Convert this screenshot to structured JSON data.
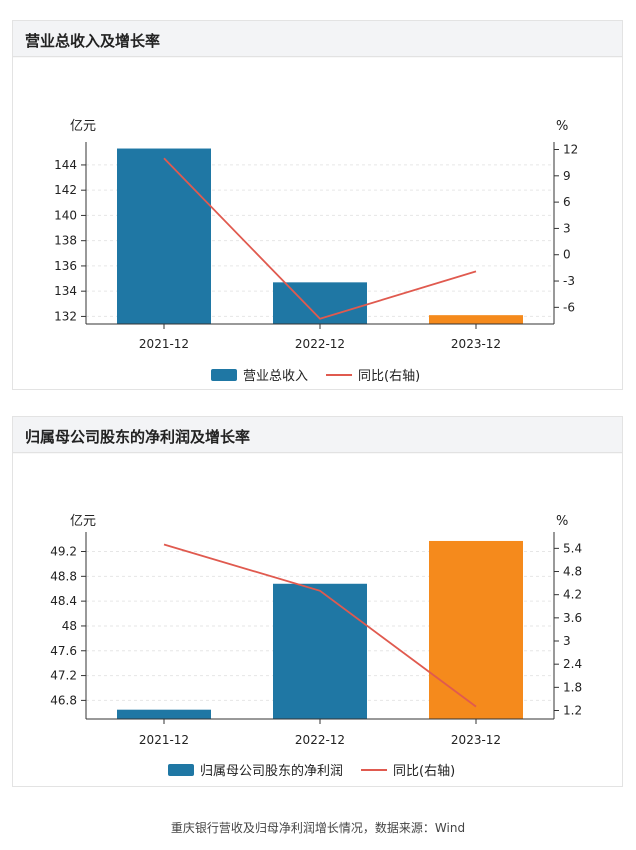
{
  "caption": "重庆银行营收及归母净利润增长情况，数据来源：Wind",
  "colors": {
    "bar_main": "#1f77a4",
    "bar_highlight": "#f58a1c",
    "line": "#e05a4f",
    "grid": "#e6e6e6"
  },
  "chart_data": [
    {
      "type": "bar",
      "title": "营业总收入及增长率",
      "categories": [
        "2021-12",
        "2022-12",
        "2023-12"
      ],
      "series": [
        {
          "name": "营业总收入",
          "type": "bar",
          "axis": "left",
          "values": [
            145.3,
            134.7,
            132.1
          ]
        },
        {
          "name": "同比(右轴)",
          "type": "line",
          "axis": "right",
          "values": [
            11.0,
            -7.3,
            -1.9
          ]
        }
      ],
      "ylabel": "亿元",
      "ylabel_right": "%",
      "ylim": [
        131.4,
        145.5
      ],
      "ylim_right": [
        -7.9,
        12.4
      ],
      "yticks": [
        "132",
        "134",
        "136",
        "138",
        "140",
        "142",
        "144"
      ],
      "yticks_right": [
        "-6",
        "-3",
        "0",
        "3",
        "6",
        "9",
        "12"
      ],
      "highlight_index": 2,
      "grid": true,
      "legend": "bottom"
    },
    {
      "type": "bar",
      "title": "归属母公司股东的净利润及增长率",
      "categories": [
        "2021-12",
        "2022-12",
        "2023-12"
      ],
      "series": [
        {
          "name": "归属母公司股东的净利润",
          "type": "bar",
          "axis": "left",
          "values": [
            46.65,
            48.68,
            49.37
          ]
        },
        {
          "name": "同比(右轴)",
          "type": "line",
          "axis": "right",
          "values": [
            5.5,
            4.3,
            1.3
          ]
        }
      ],
      "ylabel": "亿元",
      "ylabel_right": "%",
      "ylim": [
        46.5,
        49.45
      ],
      "ylim_right": [
        0.98,
        5.72
      ],
      "yticks": [
        "46.8",
        "47.2",
        "47.6",
        "48",
        "48.4",
        "48.8",
        "49.2"
      ],
      "yticks_right": [
        "1.2",
        "1.8",
        "2.4",
        "3",
        "3.6",
        "4.2",
        "4.8",
        "5.4"
      ],
      "highlight_index": 2,
      "grid": true,
      "legend": "bottom"
    }
  ]
}
